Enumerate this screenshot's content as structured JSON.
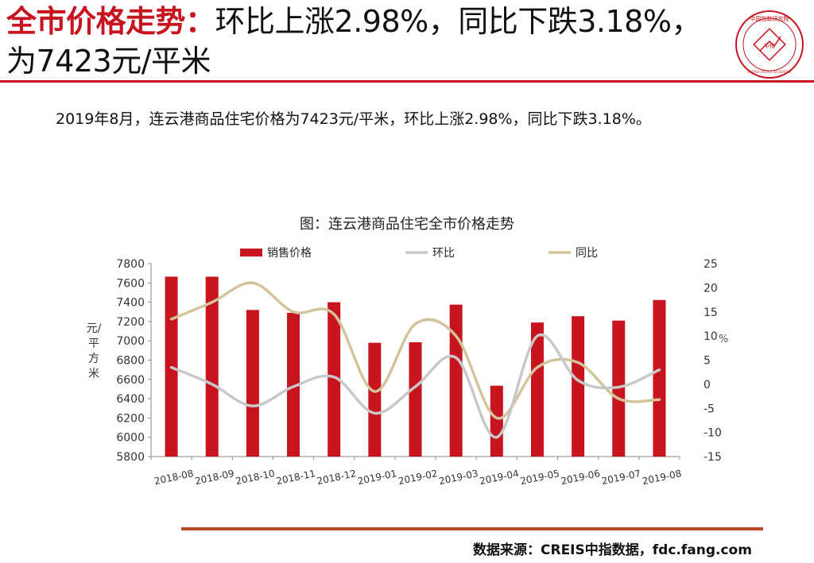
{
  "header": {
    "title_highlight": "全市价格走势：",
    "title_rest": "环比上涨2.98%，同比下跌3.18%，为7423元/平米",
    "logo_text_top": "中国指数研究院",
    "logo_text_center": "中指",
    "logo_text_bottom": "CHINA INDEX ACADEMY"
  },
  "summary": "2019年8月，连云港商品住宅价格为7423元/平米，环比上涨2.98%，同比下跌3.18%。",
  "footer": {
    "source": "数据来源：CREIS中指数据，fdc.fang.com"
  },
  "colors": {
    "accent": "#c8141e",
    "bar": "#c8141e",
    "mom_line": "#c8c8c8",
    "yoy_line": "#d4c49c"
  },
  "chart_data": {
    "type": "bar",
    "title": "图：连云港商品住宅全市价格走势",
    "ylabel": "元/平方米",
    "y2label": "%",
    "categories": [
      "2018-08",
      "2018-09",
      "2018-10",
      "2018-11",
      "2018-12",
      "2019-01",
      "2019-02",
      "2019-03",
      "2019-04",
      "2019-05",
      "2019-06",
      "2019-07",
      "2019-08"
    ],
    "series": [
      {
        "name": "销售价格",
        "type": "bar",
        "axis": "left",
        "values": [
          7665,
          7665,
          7320,
          7290,
          7400,
          6980,
          6985,
          7375,
          6535,
          7190,
          7255,
          7210,
          7423
        ]
      },
      {
        "name": "环比",
        "type": "line",
        "axis": "right",
        "values": [
          3.5,
          0,
          -4.5,
          -0.5,
          1.5,
          -6,
          -0.5,
          5.5,
          -11,
          10,
          0.8,
          -0.6,
          2.98
        ]
      },
      {
        "name": "同比",
        "type": "line",
        "axis": "right",
        "values": [
          13.5,
          17,
          21,
          15,
          14.5,
          -1.5,
          12.5,
          10,
          -7,
          3.5,
          4.5,
          -3,
          -3.18
        ]
      }
    ],
    "ylim": [
      5800,
      7800
    ],
    "yticks": [
      5800,
      6000,
      6200,
      6400,
      6600,
      6800,
      7000,
      7200,
      7400,
      7600,
      7800
    ],
    "y2lim": [
      -15,
      25
    ],
    "y2ticks": [
      -15,
      -10,
      -5,
      0,
      5,
      10,
      15,
      20,
      25
    ],
    "legend_position": "top",
    "grid": false
  }
}
